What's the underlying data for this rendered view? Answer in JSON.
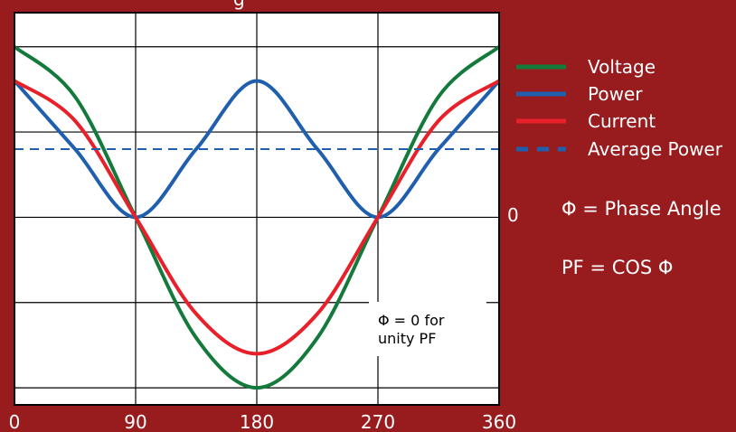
{
  "chart_data": {
    "type": "line",
    "title_fragment": "g",
    "x_ticks": [
      "0",
      "90",
      "180",
      "270",
      "360"
    ],
    "y_zero_label": "0",
    "xlim": [
      0,
      360
    ],
    "ylim": [
      -1.1,
      1.2
    ],
    "grid": true,
    "legend_position": "right",
    "series": [
      {
        "name": "Voltage",
        "color": "#147a3c",
        "style": "solid",
        "x": [
          0,
          45,
          90,
          135,
          180,
          225,
          270,
          315,
          360
        ],
        "y": [
          1.0,
          0.707,
          0,
          -0.707,
          -1.0,
          -0.707,
          0,
          0.707,
          1.0
        ]
      },
      {
        "name": "Power",
        "color": "#1f5fae",
        "style": "solid",
        "x": [
          0,
          45,
          90,
          135,
          180,
          225,
          270,
          315,
          360
        ],
        "y": [
          0.8,
          0.4,
          0,
          0.4,
          0.8,
          0.4,
          0,
          0.4,
          0.8
        ]
      },
      {
        "name": "Current",
        "color": "#e8202a",
        "style": "solid",
        "x": [
          0,
          45,
          90,
          135,
          180,
          225,
          270,
          315,
          360
        ],
        "y": [
          0.8,
          0.566,
          0,
          -0.566,
          -0.8,
          -0.566,
          0,
          0.566,
          0.8
        ]
      },
      {
        "name": "Average Power",
        "color": "#1f5fae",
        "style": "dashed",
        "x": [
          0,
          360
        ],
        "y": [
          0.4,
          0.4
        ]
      }
    ]
  },
  "annotations": {
    "phase_angle": "Φ = Phase Angle",
    "power_factor": "PF = COS Φ",
    "note_line1": "Φ = 0 for",
    "note_line2": "unity PF"
  }
}
